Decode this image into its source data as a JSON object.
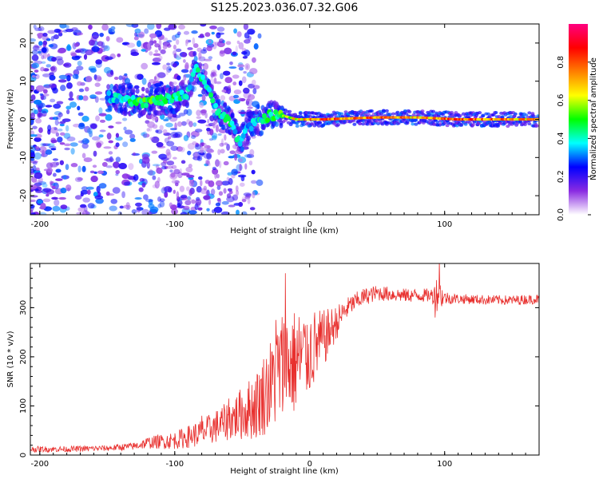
{
  "title": "S125.2023.036.07.32.G06",
  "colors": {
    "snr_line": "#e8302e",
    "background": "#ffffff",
    "axis": "#000000"
  },
  "chart_data": [
    {
      "type": "heatmap",
      "name": "spectrogram",
      "xlabel": "Height of straight line (km)",
      "ylabel": "Frequency (Hz)",
      "xlim": [
        -207,
        170
      ],
      "ylim": [
        -25,
        25
      ],
      "xticks": [
        -200,
        -100,
        0,
        100
      ],
      "xtick_labels": [
        "-200",
        "-100",
        "0",
        "100"
      ],
      "yticks": [
        -20,
        -10,
        0,
        10,
        20
      ],
      "ytick_labels": [
        "-20",
        "-10",
        "0",
        "10",
        "20"
      ],
      "colorbar": {
        "label": "Normalized spectral amplitude",
        "range": [
          0,
          1
        ],
        "ticks": [
          0.0,
          0.2,
          0.4,
          0.6,
          0.8
        ],
        "tick_labels": [
          "0.0",
          "0.2",
          "0.4",
          "0.6",
          "0.8"
        ],
        "colormap": "gist_rainbow_r",
        "stops": [
          "#ffffff",
          "#8a2be2",
          "#0000ff",
          "#00ffff",
          "#00ff00",
          "#ffff00",
          "#ff7f00",
          "#ff0000",
          "#ff0080"
        ]
      },
      "ridge": {
        "description_points": [
          {
            "x": -150,
            "freq": 6,
            "amp": 0.3
          },
          {
            "x": -140,
            "freq": 5,
            "amp": 0.45
          },
          {
            "x": -125,
            "freq": 4.5,
            "amp": 0.55
          },
          {
            "x": -110,
            "freq": 5,
            "amp": 0.5
          },
          {
            "x": -100,
            "freq": 5.5,
            "amp": 0.45
          },
          {
            "x": -90,
            "freq": 7,
            "amp": 0.4
          },
          {
            "x": -85,
            "freq": 14,
            "amp": 0.45
          },
          {
            "x": -78,
            "freq": 10,
            "amp": 0.45
          },
          {
            "x": -70,
            "freq": 3,
            "amp": 0.4
          },
          {
            "x": -60,
            "freq": 0,
            "amp": 0.45
          },
          {
            "x": -52,
            "freq": -6,
            "amp": 0.4
          },
          {
            "x": -45,
            "freq": -2,
            "amp": 0.35
          },
          {
            "x": -30,
            "freq": 1,
            "amp": 0.5
          },
          {
            "x": -20,
            "freq": 1,
            "amp": 0.55
          },
          {
            "x": -10,
            "freq": 0,
            "amp": 0.7
          },
          {
            "x": 10,
            "freq": 0,
            "amp": 0.85
          },
          {
            "x": 50,
            "freq": 0.5,
            "amp": 0.8
          },
          {
            "x": 80,
            "freq": 0.5,
            "amp": 0.75
          },
          {
            "x": 110,
            "freq": 0,
            "amp": 0.85
          },
          {
            "x": 150,
            "freq": 0,
            "amp": 0.8
          },
          {
            "x": 170,
            "freq": 0,
            "amp": 0.75
          }
        ]
      }
    },
    {
      "type": "line",
      "name": "snr",
      "xlabel": "Height of straight line (km)",
      "ylabel": "SNR (10 * v/v)",
      "xlim": [
        -207,
        170
      ],
      "ylim": [
        0,
        390
      ],
      "xticks": [
        -200,
        -100,
        0,
        100
      ],
      "xtick_labels": [
        "-200",
        "-100",
        "0",
        "100"
      ],
      "yticks": [
        0,
        100,
        200,
        300
      ],
      "ytick_labels": [
        "0",
        "100",
        "200",
        "300"
      ],
      "series": [
        {
          "name": "SNR",
          "x": [
            -207,
            -180,
            -150,
            -130,
            -120,
            -100,
            -80,
            -60,
            -50,
            -40,
            -30,
            -20,
            -10,
            0,
            10,
            20,
            25,
            30,
            40,
            50,
            70,
            90,
            95,
            100,
            110,
            130,
            150,
            170
          ],
          "y": [
            12,
            12,
            14,
            18,
            25,
            30,
            45,
            70,
            85,
            100,
            140,
            180,
            190,
            210,
            235,
            270,
            290,
            305,
            322,
            330,
            325,
            325,
            330,
            320,
            318,
            316,
            315,
            318
          ],
          "noise": [
            6,
            6,
            6,
            8,
            12,
            18,
            28,
            40,
            55,
            70,
            95,
            120,
            110,
            90,
            60,
            35,
            25,
            20,
            18,
            16,
            14,
            14,
            40,
            14,
            10,
            10,
            10,
            10
          ],
          "spikes": [
            {
              "x": -80,
              "y": 80
            },
            {
              "x": -60,
              "y": 115
            },
            {
              "x": -40,
              "y": 150
            },
            {
              "x": -28,
              "y": 210
            },
            {
              "x": -25,
              "y": 275
            },
            {
              "x": -18,
              "y": 370
            },
            {
              "x": -2,
              "y": 265
            },
            {
              "x": 96,
              "y": 395
            },
            {
              "x": 93,
              "y": 280
            }
          ]
        }
      ]
    }
  ]
}
